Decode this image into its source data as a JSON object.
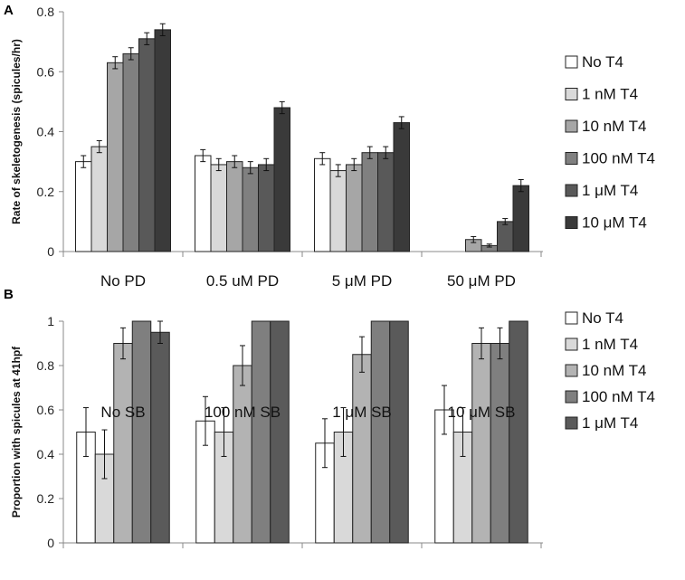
{
  "chart_data": [
    {
      "type": "bar",
      "panel_label": "A",
      "title": "",
      "xlabel": "",
      "ylabel": "Rate of skeletogenesis (spicules/hr)",
      "ylim": [
        0,
        0.8
      ],
      "yticks": [
        "0",
        "0.2",
        "0.4",
        "0.6",
        "0.8"
      ],
      "categories": [
        "No PD",
        "0.5 uM PD",
        "5 μM PD",
        "50 μM PD"
      ],
      "grid": false,
      "legend_position": "right",
      "series": [
        {
          "name": "No T4",
          "color": "#ffffff",
          "values": [
            0.3,
            0.32,
            0.31,
            null
          ],
          "errors": [
            0.02,
            0.02,
            0.02,
            null
          ]
        },
        {
          "name": "1 nM T4",
          "color": "#d9d9d9",
          "values": [
            0.35,
            0.29,
            0.27,
            null
          ],
          "errors": [
            0.02,
            0.02,
            0.02,
            null
          ]
        },
        {
          "name": "10 nM T4",
          "color": "#a6a6a6",
          "values": [
            0.63,
            0.3,
            0.29,
            0.04
          ],
          "errors": [
            0.02,
            0.02,
            0.02,
            0.01
          ]
        },
        {
          "name": "100 nM T4",
          "color": "#808080",
          "values": [
            0.66,
            0.28,
            0.33,
            0.02
          ],
          "errors": [
            0.02,
            0.02,
            0.02,
            0.005
          ]
        },
        {
          "name": "1 μM T4",
          "color": "#595959",
          "values": [
            0.71,
            0.29,
            0.33,
            0.1
          ],
          "errors": [
            0.02,
            0.02,
            0.02,
            0.01
          ]
        },
        {
          "name": "10 μM T4",
          "color": "#3a3a3a",
          "values": [
            0.74,
            0.48,
            0.43,
            0.22
          ],
          "errors": [
            0.02,
            0.02,
            0.02,
            0.02
          ]
        }
      ]
    },
    {
      "type": "bar",
      "panel_label": "B",
      "title": "",
      "xlabel": "",
      "ylabel": "Proportion with spicules at 41hpf",
      "ylim": [
        0,
        1
      ],
      "yticks": [
        "0",
        "0.2",
        "0.4",
        "0.6",
        "0.8",
        "1"
      ],
      "categories": [
        "No SB",
        "100 nM SB",
        "1 μM SB",
        "10 μM SB"
      ],
      "grid": false,
      "legend_position": "right",
      "series": [
        {
          "name": "No T4",
          "color": "#ffffff",
          "values": [
            0.5,
            0.55,
            0.45,
            0.6
          ],
          "errors": [
            0.11,
            0.11,
            0.11,
            0.11
          ]
        },
        {
          "name": "1 nM T4",
          "color": "#d9d9d9",
          "values": [
            0.4,
            0.5,
            0.5,
            0.5
          ],
          "errors": [
            0.11,
            0.11,
            0.11,
            0.11
          ]
        },
        {
          "name": "10 nM T4",
          "color": "#b3b3b3",
          "values": [
            0.9,
            0.8,
            0.85,
            0.9
          ],
          "errors": [
            0.07,
            0.09,
            0.08,
            0.07
          ]
        },
        {
          "name": "100 nM T4",
          "color": "#7f7f7f",
          "values": [
            1.0,
            1.0,
            1.0,
            0.9
          ],
          "errors": [
            null,
            null,
            null,
            0.07
          ]
        },
        {
          "name": "1 μM T4",
          "color": "#5a5a5a",
          "values": [
            0.95,
            1.0,
            1.0,
            1.0
          ],
          "errors": [
            0.05,
            null,
            null,
            null
          ]
        }
      ]
    }
  ]
}
